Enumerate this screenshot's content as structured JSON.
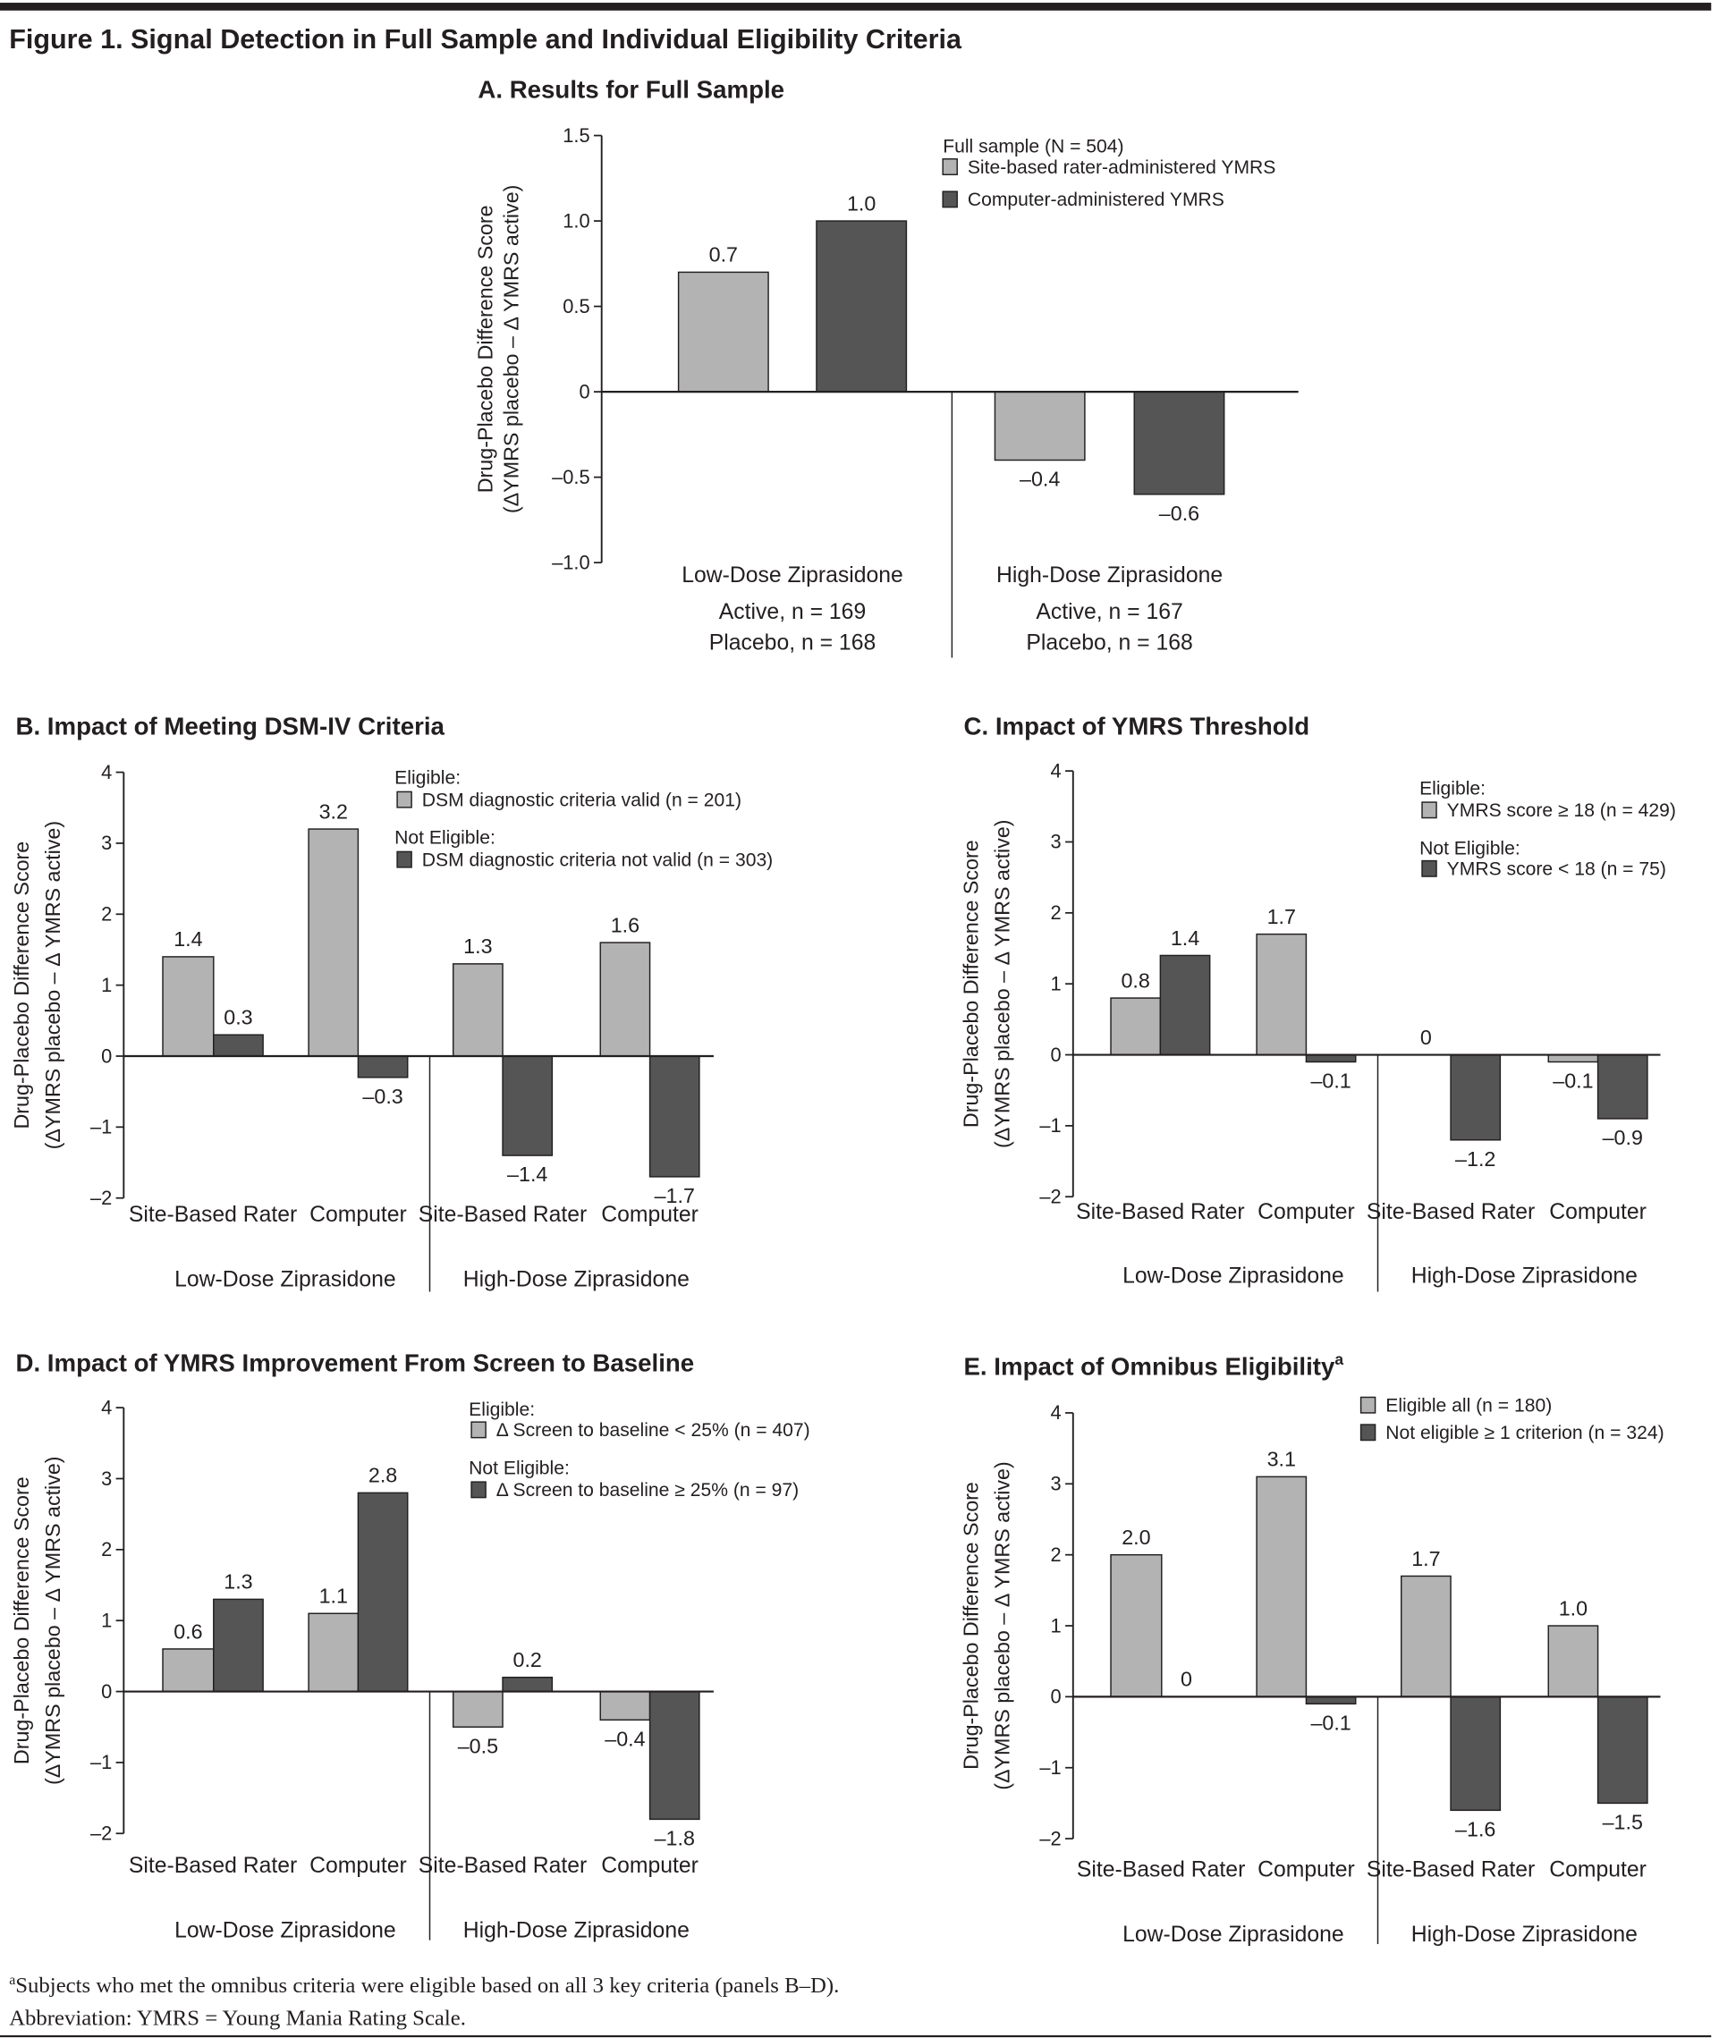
{
  "figure_title": "Figure 1. Signal Detection in Full Sample and Individual Eligibility Criteria",
  "colors": {
    "light": "#b3b3b3",
    "dark": "#555555",
    "axis": "#231f20"
  },
  "footnotes": [
    "Subjects who met the omnibus criteria were eligible based on all 3 key criteria (panels B–D).",
    "Abbreviation: YMRS = Young Mania Rating Scale."
  ],
  "footnote_marker": "a",
  "chart_data": [
    {
      "type": "bar",
      "title": "A. Results for Full Sample",
      "ylabel": [
        "Drug-Placebo Difference Score",
        "(ΔYMRS placebo – Δ YMRS active)"
      ],
      "ylim": [
        -1.0,
        1.5
      ],
      "yticks": [
        "1.5",
        "1.0",
        "0.5",
        "0",
        "–0.5",
        "–1.0"
      ],
      "ytick_values": [
        1.5,
        1.0,
        0.5,
        0,
        -0.5,
        -1.0
      ],
      "legend_title": "Full sample (N = 504)",
      "legend": [
        "Site-based rater-administered YMRS",
        "Computer-administered YMRS"
      ],
      "groups": [
        {
          "label": "Low-Dose Ziprasidone",
          "sublabels": [
            "Active, n = 169",
            "Placebo, n = 168"
          ],
          "bars": [
            {
              "series": "Site-based rater-administered YMRS",
              "value": 0.7,
              "label": "0.7"
            },
            {
              "series": "Computer-administered YMRS",
              "value": 1.0,
              "label": "1.0"
            }
          ]
        },
        {
          "label": "High-Dose Ziprasidone",
          "sublabels": [
            "Active, n = 167",
            "Placebo, n = 168"
          ],
          "bars": [
            {
              "series": "Site-based rater-administered YMRS",
              "value": -0.4,
              "label": "–0.4"
            },
            {
              "series": "Computer-administered YMRS",
              "value": -0.6,
              "label": "–0.6"
            }
          ]
        }
      ]
    },
    {
      "type": "bar",
      "title": "B. Impact of Meeting DSM-IV Criteria",
      "ylabel": [
        "Drug-Placebo Difference Score",
        "(ΔYMRS placebo – Δ YMRS active)"
      ],
      "ylim": [
        -2,
        4
      ],
      "yticks": [
        "4",
        "3",
        "2",
        "1",
        "0",
        "–1",
        "–2"
      ],
      "ytick_values": [
        4,
        3,
        2,
        1,
        0,
        -1,
        -2
      ],
      "legend_headers": [
        "Eligible:",
        "Not Eligible:"
      ],
      "legend": [
        "DSM diagnostic criteria valid (n = 201)",
        "DSM diagnostic criteria not valid (n = 303)"
      ],
      "subcategories": [
        "Site-Based Rater",
        "Computer",
        "Site-Based Rater",
        "Computer"
      ],
      "groups_labels": [
        "Low-Dose Ziprasidone",
        "High-Dose Ziprasidone"
      ],
      "series": [
        {
          "name": "DSM diagnostic criteria valid (n = 201)",
          "values": [
            1.4,
            3.2,
            1.3,
            1.6
          ],
          "labels": [
            "1.4",
            "3.2",
            "1.3",
            "1.6"
          ]
        },
        {
          "name": "DSM diagnostic criteria not valid (n = 303)",
          "values": [
            0.3,
            -0.3,
            -1.4,
            -1.7
          ],
          "labels": [
            "0.3",
            "–0.3",
            "–1.4",
            "–1.7"
          ]
        }
      ]
    },
    {
      "type": "bar",
      "title": "C. Impact of YMRS Threshold",
      "ylabel": [
        "Drug-Placebo Difference Score",
        "(ΔYMRS placebo – Δ YMRS active)"
      ],
      "ylim": [
        -2,
        4
      ],
      "yticks": [
        "4",
        "3",
        "2",
        "1",
        "0",
        "–1",
        "–2"
      ],
      "ytick_values": [
        4,
        3,
        2,
        1,
        0,
        -1,
        -2
      ],
      "legend_headers": [
        "Eligible:",
        "Not Eligible:"
      ],
      "legend": [
        "YMRS score ≥ 18 (n = 429)",
        "YMRS score < 18 (n = 75)"
      ],
      "subcategories": [
        "Site-Based Rater",
        "Computer",
        "Site-Based Rater",
        "Computer"
      ],
      "groups_labels": [
        "Low-Dose Ziprasidone",
        "High-Dose Ziprasidone"
      ],
      "series": [
        {
          "name": "YMRS score ≥ 18 (n = 429)",
          "values": [
            0.8,
            1.7,
            0,
            -0.1
          ],
          "labels": [
            "0.8",
            "1.7",
            "0",
            "–0.1"
          ]
        },
        {
          "name": "YMRS score < 18 (n = 75)",
          "values": [
            1.4,
            -0.1,
            -1.2,
            -0.9
          ],
          "labels": [
            "1.4",
            "–0.1",
            "–1.2",
            "–0.9"
          ]
        }
      ]
    },
    {
      "type": "bar",
      "title": "D. Impact of YMRS Improvement From Screen to Baseline",
      "ylabel": [
        "Drug-Placebo Difference Score",
        "(ΔYMRS placebo – Δ YMRS active)"
      ],
      "ylim": [
        -2,
        4
      ],
      "yticks": [
        "4",
        "3",
        "2",
        "1",
        "0",
        "–1",
        "–2"
      ],
      "ytick_values": [
        4,
        3,
        2,
        1,
        0,
        -1,
        -2
      ],
      "legend_headers": [
        "Eligible:",
        "Not Eligible:"
      ],
      "legend": [
        "Δ Screen to baseline < 25% (n = 407)",
        "Δ Screen to baseline ≥ 25% (n = 97)"
      ],
      "subcategories": [
        "Site-Based Rater",
        "Computer",
        "Site-Based Rater",
        "Computer"
      ],
      "groups_labels": [
        "Low-Dose Ziprasidone",
        "High-Dose Ziprasidone"
      ],
      "series": [
        {
          "name": "Δ Screen to baseline < 25% (n = 407)",
          "values": [
            0.6,
            1.1,
            -0.5,
            -0.4
          ],
          "labels": [
            "0.6",
            "1.1",
            "–0.5",
            "–0.4"
          ]
        },
        {
          "name": "Δ Screen to baseline ≥ 25% (n = 97)",
          "values": [
            1.3,
            2.8,
            0.2,
            -1.8
          ],
          "labels": [
            "1.3",
            "2.8",
            "0.2",
            "–1.8"
          ]
        }
      ]
    },
    {
      "type": "bar",
      "title": "E. Impact of Omnibus Eligibility",
      "title_superscript": "a",
      "ylabel": [
        "Drug-Placebo Difference Score",
        "(ΔYMRS placebo – Δ YMRS active)"
      ],
      "ylim": [
        -2,
        4
      ],
      "yticks": [
        "4",
        "3",
        "2",
        "1",
        "0",
        "–1",
        "–2"
      ],
      "ytick_values": [
        4,
        3,
        2,
        1,
        0,
        -1,
        -2
      ],
      "legend": [
        "Eligible all (n = 180)",
        "Not eligible ≥ 1 criterion (n = 324)"
      ],
      "subcategories": [
        "Site-Based Rater",
        "Computer",
        "Site-Based Rater",
        "Computer"
      ],
      "groups_labels": [
        "Low-Dose Ziprasidone",
        "High-Dose Ziprasidone"
      ],
      "series": [
        {
          "name": "Eligible all (n = 180)",
          "values": [
            2.0,
            3.1,
            1.7,
            1.0
          ],
          "labels": [
            "2.0",
            "3.1",
            "1.7",
            "1.0"
          ]
        },
        {
          "name": "Not eligible ≥ 1 criterion (n = 324)",
          "values": [
            0,
            -0.1,
            -1.6,
            -1.5
          ],
          "labels": [
            "0",
            "–0.1",
            "–1.6",
            "–1.5"
          ]
        }
      ]
    }
  ]
}
